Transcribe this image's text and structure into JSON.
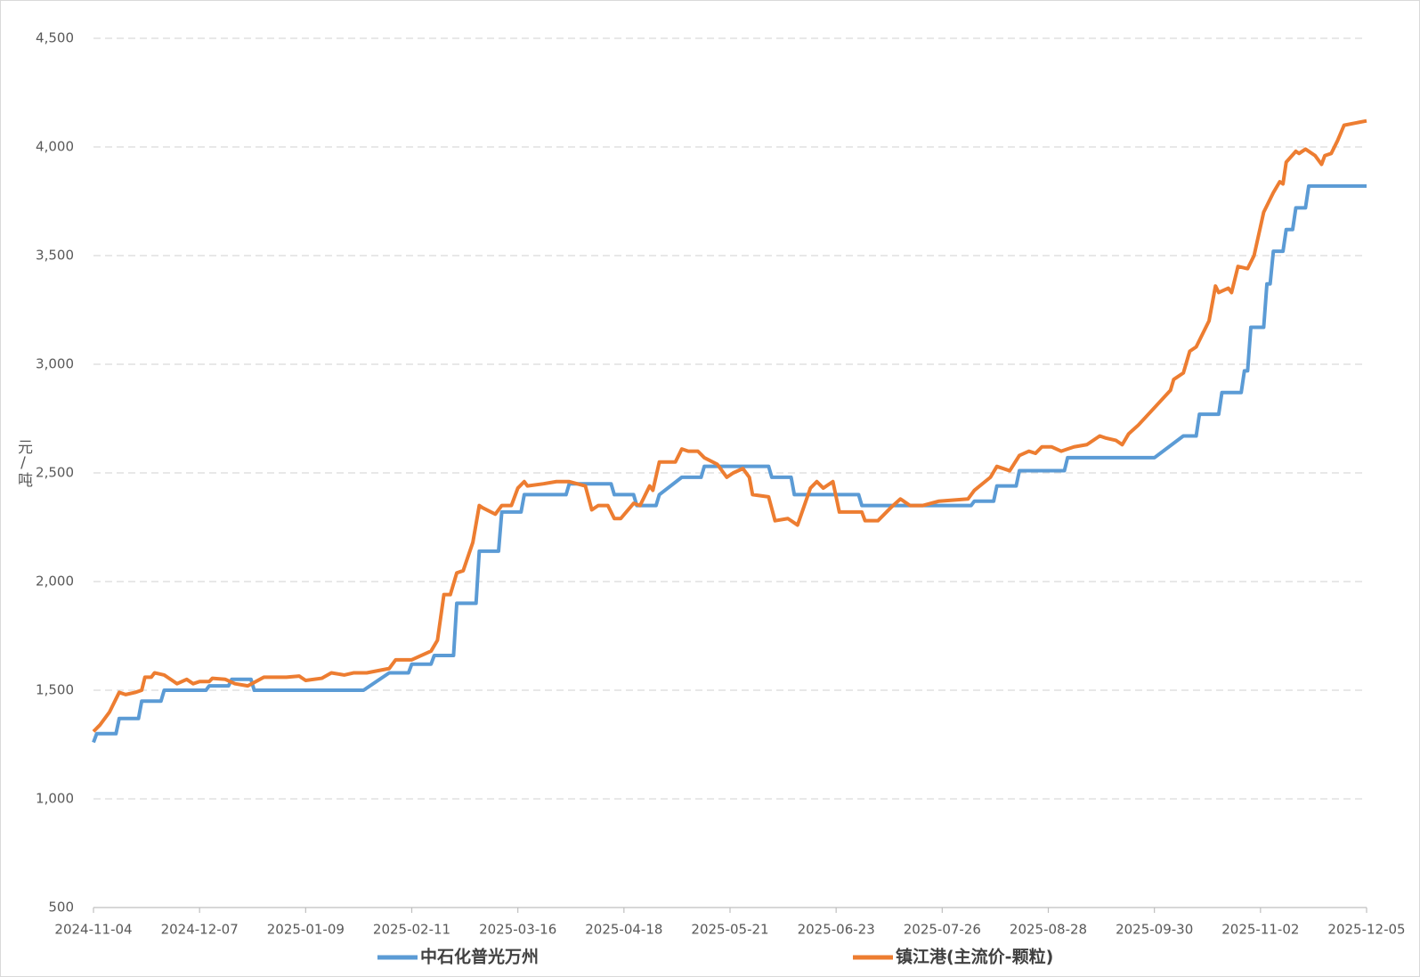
{
  "chart_data": {
    "type": "line",
    "ylabel": "元/吨",
    "xlim": [
      "2024-11-04",
      "2025-12-05"
    ],
    "xticks": [
      "2024-11-04",
      "2024-12-07",
      "2025-01-09",
      "2025-02-11",
      "2025-03-16",
      "2025-04-18",
      "2025-05-21",
      "2025-06-23",
      "2025-07-26",
      "2025-08-28",
      "2025-09-30",
      "2025-11-02",
      "2025-12-05"
    ],
    "ylim": [
      500,
      4500
    ],
    "yticks": [
      500,
      {
        "value": 1000,
        "label": "1,000"
      },
      {
        "value": 1500,
        "label": "1,500"
      },
      {
        "value": 2000,
        "label": "2,000"
      },
      {
        "value": 2500,
        "label": "2,500"
      },
      {
        "value": 3000,
        "label": "3,000"
      },
      {
        "value": 3500,
        "label": "3,500"
      },
      {
        "value": 4000,
        "label": "4,000"
      },
      {
        "value": 4500,
        "label": "4,500"
      }
    ],
    "grid": true,
    "legend": "bottom",
    "series": [
      {
        "name": "中石化普光万州",
        "color": "#5b9bd5",
        "x": [
          "2024-11-04",
          "2024-11-05",
          "2024-11-11",
          "2024-11-12",
          "2024-11-18",
          "2024-11-19",
          "2024-11-25",
          "2024-11-26",
          "2024-12-09",
          "2024-12-10",
          "2024-12-16",
          "2024-12-17",
          "2024-12-23",
          "2024-12-24",
          "2025-01-27",
          "2025-02-04",
          "2025-02-10",
          "2025-02-11",
          "2025-02-17",
          "2025-02-18",
          "2025-02-24",
          "2025-02-25",
          "2025-03-03",
          "2025-03-04",
          "2025-03-10",
          "2025-03-11",
          "2025-03-17",
          "2025-03-18",
          "2025-03-31",
          "2025-04-01",
          "2025-04-14",
          "2025-04-15",
          "2025-04-21",
          "2025-04-22",
          "2025-04-28",
          "2025-04-29",
          "2025-05-06",
          "2025-05-12",
          "2025-05-13",
          "2025-06-02",
          "2025-06-03",
          "2025-06-09",
          "2025-06-10",
          "2025-06-30",
          "2025-07-01",
          "2025-08-04",
          "2025-08-05",
          "2025-08-11",
          "2025-08-12",
          "2025-08-18",
          "2025-08-19",
          "2025-09-02",
          "2025-09-03",
          "2025-09-30",
          "2025-10-09",
          "2025-10-13",
          "2025-10-14",
          "2025-10-20",
          "2025-10-21",
          "2025-10-27",
          "2025-10-28",
          "2025-10-29",
          "2025-10-30",
          "2025-11-03",
          "2025-11-04",
          "2025-11-05",
          "2025-11-06",
          "2025-11-09",
          "2025-11-10",
          "2025-11-12",
          "2025-11-13",
          "2025-11-16",
          "2025-11-17",
          "2025-12-05"
        ],
        "values": [
          1260,
          1300,
          1300,
          1370,
          1370,
          1450,
          1450,
          1500,
          1500,
          1520,
          1520,
          1550,
          1550,
          1500,
          1500,
          1580,
          1580,
          1620,
          1620,
          1660,
          1660,
          1900,
          1900,
          2140,
          2140,
          2320,
          2320,
          2400,
          2400,
          2450,
          2450,
          2400,
          2400,
          2350,
          2350,
          2400,
          2480,
          2480,
          2530,
          2530,
          2480,
          2480,
          2400,
          2400,
          2350,
          2350,
          2370,
          2370,
          2440,
          2440,
          2510,
          2510,
          2570,
          2570,
          2670,
          2670,
          2770,
          2770,
          2870,
          2870,
          2970,
          2970,
          3170,
          3170,
          3370,
          3370,
          3520,
          3520,
          3620,
          3620,
          3720,
          3720,
          3820,
          3820
        ]
      },
      {
        "name": "镇江港(主流价-颗粒)",
        "color": "#ed7d31",
        "x": [
          "2024-11-04",
          "2024-11-06",
          "2024-11-09",
          "2024-11-12",
          "2024-11-14",
          "2024-11-17",
          "2024-11-19",
          "2024-11-20",
          "2024-11-22",
          "2024-11-23",
          "2024-11-26",
          "2024-11-27",
          "2024-11-29",
          "2024-11-30",
          "2024-12-03",
          "2024-12-05",
          "2024-12-07",
          "2024-12-10",
          "2024-12-11",
          "2024-12-15",
          "2024-12-18",
          "2024-12-22",
          "2024-12-27",
          "2025-01-03",
          "2025-01-07",
          "2025-01-09",
          "2025-01-14",
          "2025-01-17",
          "2025-01-21",
          "2025-01-24",
          "2025-01-28",
          "2025-02-04",
          "2025-02-06",
          "2025-02-11",
          "2025-02-17",
          "2025-02-19",
          "2025-02-21",
          "2025-02-23",
          "2025-02-25",
          "2025-02-27",
          "2025-03-02",
          "2025-03-04",
          "2025-03-05",
          "2025-03-09",
          "2025-03-11",
          "2025-03-14",
          "2025-03-16",
          "2025-03-18",
          "2025-03-19",
          "2025-03-24",
          "2025-03-28",
          "2025-04-01",
          "2025-04-06",
          "2025-04-08",
          "2025-04-10",
          "2025-04-13",
          "2025-04-15",
          "2025-04-17",
          "2025-04-21",
          "2025-04-23",
          "2025-04-26",
          "2025-04-27",
          "2025-04-29",
          "2025-05-04",
          "2025-05-06",
          "2025-05-08",
          "2025-05-11",
          "2025-05-13",
          "2025-05-17",
          "2025-05-20",
          "2025-05-22",
          "2025-05-25",
          "2025-05-27",
          "2025-05-28",
          "2025-06-02",
          "2025-06-04",
          "2025-06-08",
          "2025-06-11",
          "2025-06-15",
          "2025-06-17",
          "2025-06-19",
          "2025-06-22",
          "2025-06-24",
          "2025-07-01",
          "2025-07-02",
          "2025-07-06",
          "2025-07-10",
          "2025-07-13",
          "2025-07-16",
          "2025-07-20",
          "2025-07-25",
          "2025-08-03",
          "2025-08-05",
          "2025-08-10",
          "2025-08-12",
          "2025-08-16",
          "2025-08-19",
          "2025-08-22",
          "2025-08-24",
          "2025-08-26",
          "2025-08-29",
          "2025-09-01",
          "2025-09-03",
          "2025-09-05",
          "2025-09-09",
          "2025-09-13",
          "2025-09-15",
          "2025-09-18",
          "2025-09-20",
          "2025-09-22",
          "2025-09-25",
          "2025-09-30",
          "2025-10-05",
          "2025-10-06",
          "2025-10-09",
          "2025-10-11",
          "2025-10-13",
          "2025-10-17",
          "2025-10-19",
          "2025-10-20",
          "2025-10-23",
          "2025-10-24",
          "2025-10-26",
          "2025-10-29",
          "2025-10-31",
          "2025-11-03",
          "2025-11-06",
          "2025-11-08",
          "2025-11-09",
          "2025-11-10",
          "2025-11-13",
          "2025-11-14",
          "2025-11-16",
          "2025-11-19",
          "2025-11-21",
          "2025-11-22",
          "2025-11-24",
          "2025-11-26",
          "2025-11-28",
          "2025-12-05"
        ],
        "values": [
          1310,
          1340,
          1400,
          1490,
          1480,
          1490,
          1500,
          1560,
          1560,
          1580,
          1570,
          1560,
          1540,
          1530,
          1550,
          1530,
          1540,
          1540,
          1555,
          1550,
          1530,
          1520,
          1560,
          1560,
          1565,
          1545,
          1555,
          1580,
          1570,
          1580,
          1580,
          1600,
          1640,
          1640,
          1680,
          1730,
          1940,
          1940,
          2040,
          2050,
          2180,
          2350,
          2340,
          2310,
          2350,
          2350,
          2430,
          2460,
          2440,
          2450,
          2460,
          2460,
          2440,
          2330,
          2350,
          2350,
          2290,
          2290,
          2360,
          2350,
          2440,
          2420,
          2550,
          2550,
          2610,
          2600,
          2600,
          2570,
          2540,
          2480,
          2500,
          2520,
          2480,
          2400,
          2390,
          2280,
          2290,
          2260,
          2430,
          2460,
          2430,
          2460,
          2320,
          2320,
          2280,
          2280,
          2340,
          2380,
          2350,
          2350,
          2370,
          2380,
          2420,
          2480,
          2530,
          2510,
          2580,
          2600,
          2590,
          2620,
          2620,
          2600,
          2610,
          2620,
          2630,
          2670,
          2660,
          2650,
          2630,
          2680,
          2720,
          2800,
          2880,
          2930,
          2960,
          3060,
          3080,
          3200,
          3360,
          3330,
          3350,
          3330,
          3450,
          3440,
          3500,
          3700,
          3790,
          3840,
          3830,
          3930,
          3980,
          3970,
          3990,
          3960,
          3920,
          3960,
          3970,
          4030,
          4100,
          4120
        ]
      }
    ]
  }
}
